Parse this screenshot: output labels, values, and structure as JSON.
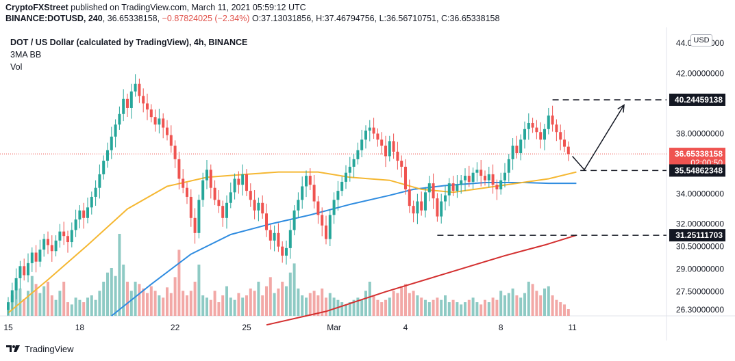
{
  "header": {
    "publisher": "CryptoFXStreet",
    "published_text": "published on TradingView.com, March 11, 2021 05:59:12 UTC",
    "symbol_line_prefix": "BINANCE:DOTUSD, 240",
    "price": "36.65338158",
    "change": "−0.87824025 (−2.34%)",
    "o_label": "O:",
    "o_value": "37.13031856",
    "h_label": "H:",
    "h_value": "37.46794756",
    "l_label": "L:",
    "l_value": "36.56710751",
    "c_label": "C:",
    "c_value": "36.65338158"
  },
  "legend": {
    "title": "DOT / US Dollar (calculated by TradingView), 4h, BINANCE",
    "indicator": "3MA BB",
    "volume": "Vol"
  },
  "currency_badge": "USD",
  "footer": {
    "brand": "TradingView"
  },
  "colors": {
    "up": "#26a69a",
    "down": "#ef5350",
    "ma_fast": "#f5b731",
    "ma_mid": "#2f8ce0",
    "ma_slow": "#d32f2f",
    "vol_up": "#8ecac4",
    "vol_down": "#f2a8a6",
    "current_price_bg": "#ef5350"
  },
  "chart_data": {
    "type": "candlestick",
    "timeframe": "4h",
    "ylim": [
      25.9,
      44.6
    ],
    "y_ticks": [
      {
        "label": "44.00000000",
        "value": 44.0
      },
      {
        "label": "42.00000000",
        "value": 42.0
      },
      {
        "label": "38.00000000",
        "value": 38.0
      },
      {
        "label": "34.00000000",
        "value": 34.0
      },
      {
        "label": "32.00000000",
        "value": 32.0
      },
      {
        "label": "30.50000000",
        "value": 30.5
      },
      {
        "label": "29.00000000",
        "value": 29.0
      },
      {
        "label": "27.50000000",
        "value": 27.5
      },
      {
        "label": "26.30000000",
        "value": 26.3
      }
    ],
    "x_ticks": [
      {
        "label": "15",
        "index": 0
      },
      {
        "label": "18",
        "index": 18
      },
      {
        "label": "22",
        "index": 42
      },
      {
        "label": "25",
        "index": 60
      },
      {
        "label": "Mar",
        "index": 82
      },
      {
        "label": "4",
        "index": 100
      },
      {
        "label": "8",
        "index": 124
      },
      {
        "label": "11",
        "index": 142
      }
    ],
    "price_labels": [
      {
        "label": "40.24459138",
        "value": 40.24459138,
        "style": "dark"
      },
      {
        "label": "36.65338158",
        "value": 36.65338158,
        "style": "current",
        "countdown": "02:00:50"
      },
      {
        "label": "35.54862348",
        "value": 35.54862348,
        "style": "dark"
      },
      {
        "label": "31.25111703",
        "value": 31.25111703,
        "style": "dark"
      }
    ],
    "levels": [
      {
        "value": 40.24459138,
        "from_index": 137
      },
      {
        "value": 35.54862348,
        "from_index": 144
      },
      {
        "value": 31.25111703,
        "from_index": 108
      }
    ],
    "current_price": 36.65338158,
    "projection": [
      [
        142,
        36.5
      ],
      [
        145,
        35.6
      ],
      [
        155,
        39.9
      ]
    ],
    "closes": [
      26.8,
      27.6,
      28.4,
      29.2,
      28.6,
      29.4,
      30.1,
      29.5,
      30.3,
      31.0,
      30.6,
      30.2,
      30.9,
      31.5,
      31.2,
      30.8,
      31.6,
      32.3,
      32.9,
      32.4,
      33.1,
      33.8,
      34.4,
      35.3,
      36.2,
      36.9,
      37.8,
      38.6,
      39.3,
      40.3,
      39.7,
      40.8,
      41.3,
      40.5,
      40.0,
      39.6,
      39.1,
      38.6,
      39.0,
      38.4,
      37.9,
      37.2,
      36.3,
      35.0,
      34.4,
      33.8,
      32.4,
      31.4,
      33.6,
      34.9,
      35.6,
      34.4,
      33.6,
      33.2,
      32.4,
      33.4,
      34.1,
      35.0,
      34.6,
      35.3,
      34.2,
      33.6,
      32.9,
      33.4,
      32.7,
      31.6,
      30.9,
      31.4,
      30.5,
      29.9,
      30.4,
      31.6,
      32.9,
      33.6,
      34.5,
      35.2,
      34.6,
      33.5,
      32.6,
      31.9,
      31.0,
      32.6,
      33.6,
      34.2,
      34.8,
      35.4,
      35.8,
      36.3,
      36.9,
      37.6,
      38.2,
      38.4,
      38.0,
      37.6,
      37.2,
      36.5,
      37.5,
      36.8,
      36.2,
      35.8,
      34.3,
      33.2,
      32.7,
      33.5,
      32.9,
      34.1,
      34.7,
      33.7,
      32.5,
      33.5,
      33.9,
      34.7,
      34.2,
      34.6,
      34.9,
      35.2,
      34.8,
      35.4,
      35.6,
      35.2,
      34.9,
      35.3,
      34.6,
      34.3,
      34.9,
      35.4,
      36.3,
      37.2,
      36.7,
      37.6,
      38.3,
      38.7,
      38.4,
      38.1,
      37.6,
      38.3,
      39.2,
      38.6,
      38.1,
      37.6,
      37.13,
      36.65
    ],
    "ma_fast": [
      [
        0,
        26.1
      ],
      [
        10,
        28.3
      ],
      [
        20,
        30.6
      ],
      [
        30,
        33.0
      ],
      [
        40,
        34.5
      ],
      [
        50,
        35.1
      ],
      [
        60,
        35.3
      ],
      [
        68,
        35.45
      ],
      [
        78,
        35.45
      ],
      [
        86,
        35.1
      ],
      [
        96,
        34.9
      ],
      [
        104,
        34.3
      ],
      [
        112,
        34.1
      ],
      [
        120,
        34.4
      ],
      [
        128,
        34.7
      ],
      [
        136,
        35.0
      ],
      [
        143,
        35.45
      ]
    ],
    "ma_mid": [
      [
        26,
        25.9
      ],
      [
        36,
        28.0
      ],
      [
        46,
        30.0
      ],
      [
        56,
        31.3
      ],
      [
        66,
        32.0
      ],
      [
        76,
        32.6
      ],
      [
        86,
        33.3
      ],
      [
        96,
        33.9
      ],
      [
        102,
        34.3
      ],
      [
        110,
        34.55
      ],
      [
        120,
        34.75
      ],
      [
        130,
        34.75
      ],
      [
        136,
        34.7
      ],
      [
        143,
        34.7
      ]
    ],
    "ma_slow": [
      [
        65,
        25.3
      ],
      [
        80,
        26.2
      ],
      [
        95,
        27.5
      ],
      [
        110,
        28.7
      ],
      [
        125,
        29.9
      ],
      [
        135,
        30.6
      ],
      [
        143,
        31.25
      ]
    ],
    "volume": [
      0.12,
      0.18,
      0.3,
      0.24,
      0.15,
      0.22,
      0.35,
      0.28,
      0.2,
      0.26,
      0.3,
      0.18,
      0.14,
      0.22,
      0.3,
      0.12,
      0.1,
      0.16,
      0.14,
      0.12,
      0.16,
      0.18,
      0.14,
      0.22,
      0.3,
      0.38,
      0.42,
      0.35,
      0.72,
      0.45,
      0.3,
      0.22,
      0.3,
      0.28,
      0.24,
      0.2,
      0.26,
      0.22,
      0.18,
      0.16,
      0.25,
      0.2,
      0.34,
      0.58,
      0.22,
      0.18,
      0.22,
      0.3,
      0.45,
      0.18,
      0.16,
      0.14,
      0.22,
      0.12,
      0.18,
      0.26,
      0.16,
      0.14,
      0.2,
      0.16,
      0.18,
      0.24,
      0.22,
      0.3,
      0.18,
      0.26,
      0.34,
      0.2,
      0.24,
      0.3,
      0.26,
      0.38,
      0.46,
      0.24,
      0.18,
      0.16,
      0.2,
      0.22,
      0.18,
      0.24,
      0.16,
      0.2,
      0.16,
      0.14,
      0.12,
      0.1,
      0.12,
      0.14,
      0.16,
      0.14,
      0.22,
      0.3,
      0.18,
      0.14,
      0.12,
      0.14,
      0.16,
      0.22,
      0.2,
      0.26,
      0.28,
      0.2,
      0.22,
      0.18,
      0.16,
      0.14,
      0.12,
      0.14,
      0.16,
      0.14,
      0.18,
      0.12,
      0.14,
      0.12,
      0.1,
      0.12,
      0.14,
      0.16,
      0.12,
      0.1,
      0.14,
      0.12,
      0.16,
      0.14,
      0.22,
      0.18,
      0.2,
      0.24,
      0.18,
      0.16,
      0.2,
      0.3,
      0.28,
      0.22,
      0.18,
      0.24,
      0.26,
      0.18,
      0.14,
      0.12,
      0.1,
      0.06
    ],
    "volume_up_when_close_rises": true,
    "vol_scale_max": 0.72
  }
}
